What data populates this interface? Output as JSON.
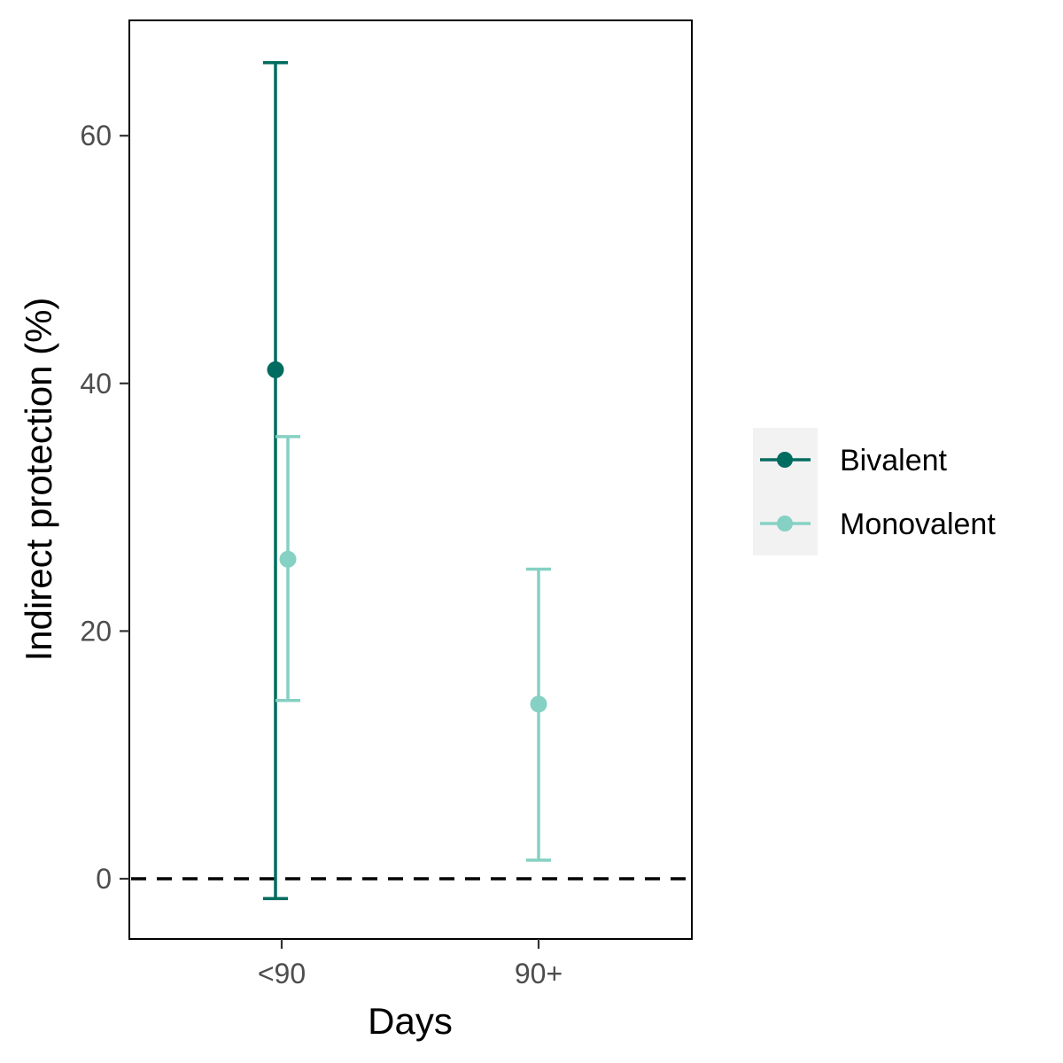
{
  "chart_data": {
    "type": "scatter",
    "title": "",
    "xlabel": "Days",
    "ylabel": "Indirect protection (%)",
    "categories": [
      "<90",
      "90+"
    ],
    "ylim": [
      -4.9,
      69.2
    ],
    "yticks": [
      0,
      20,
      40,
      60
    ],
    "reference_line": {
      "y": 0,
      "style": "dashed",
      "color": "#000000"
    },
    "grid": false,
    "legend_position": "right",
    "series": [
      {
        "name": "Bivalent",
        "color": "#006B5F",
        "points": [
          {
            "category": "<90",
            "estimate": 41.1,
            "lower": -1.6,
            "upper": 65.9
          }
        ]
      },
      {
        "name": "Monovalent",
        "color": "#85D1C3",
        "points": [
          {
            "category": "<90",
            "estimate": 25.8,
            "lower": 14.4,
            "upper": 35.7
          },
          {
            "category": "90+",
            "estimate": 14.1,
            "lower": 1.5,
            "upper": 25.0
          }
        ]
      }
    ]
  }
}
